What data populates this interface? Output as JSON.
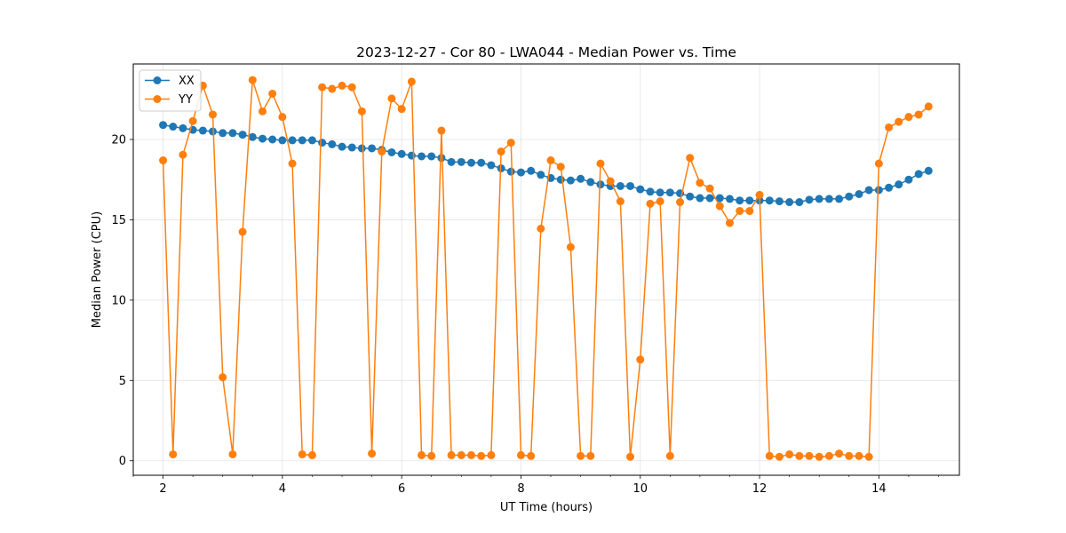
{
  "chart_data": {
    "type": "line",
    "title": "2023-12-27 - Cor 80 - LWA044 - Median Power vs. Time",
    "xlabel": "UT Time (hours)",
    "ylabel": "Median Power (CPU)",
    "xlim": [
      1.5,
      15.35
    ],
    "ylim": [
      -0.9,
      24.7
    ],
    "xticks": [
      2,
      4,
      6,
      8,
      10,
      12,
      14
    ],
    "xtick_labels": [
      "2",
      "4",
      "6",
      "8",
      "10",
      "12",
      "14"
    ],
    "xminor_step": 0.5,
    "yticks": [
      0,
      5,
      10,
      15,
      20
    ],
    "ytick_labels": [
      "0",
      "5",
      "10",
      "15",
      "20"
    ],
    "grid": true,
    "legend_position": "top-left",
    "x": [
      2.0,
      2.167,
      2.333,
      2.5,
      2.667,
      2.833,
      3.0,
      3.167,
      3.333,
      3.5,
      3.667,
      3.833,
      4.0,
      4.167,
      4.333,
      4.5,
      4.667,
      4.833,
      5.0,
      5.167,
      5.333,
      5.5,
      5.667,
      5.833,
      6.0,
      6.167,
      6.333,
      6.5,
      6.667,
      6.833,
      7.0,
      7.167,
      7.333,
      7.5,
      7.667,
      7.833,
      8.0,
      8.167,
      8.333,
      8.5,
      8.667,
      8.833,
      9.0,
      9.167,
      9.333,
      9.5,
      9.667,
      9.833,
      10.0,
      10.167,
      10.333,
      10.5,
      10.667,
      10.833,
      11.0,
      11.167,
      11.333,
      11.5,
      11.667,
      11.833,
      12.0,
      12.167,
      12.333,
      12.5,
      12.667,
      12.833,
      13.0,
      13.167,
      13.333,
      13.5,
      13.667,
      13.833,
      14.0,
      14.167,
      14.333,
      14.5,
      14.667,
      14.833
    ],
    "series": [
      {
        "name": "XX",
        "color": "#1f77b4",
        "values": [
          20.9,
          20.8,
          20.7,
          20.6,
          20.55,
          20.5,
          20.4,
          20.4,
          20.3,
          20.15,
          20.05,
          20.0,
          19.95,
          19.95,
          19.95,
          19.95,
          19.8,
          19.7,
          19.55,
          19.5,
          19.45,
          19.45,
          19.35,
          19.2,
          19.1,
          19.0,
          18.95,
          18.95,
          18.85,
          18.6,
          18.6,
          18.55,
          18.55,
          18.4,
          18.2,
          18.0,
          17.95,
          18.05,
          17.8,
          17.6,
          17.5,
          17.45,
          17.55,
          17.35,
          17.2,
          17.1,
          17.1,
          17.1,
          16.9,
          16.75,
          16.7,
          16.7,
          16.65,
          16.45,
          16.35,
          16.35,
          16.35,
          16.3,
          16.2,
          16.2,
          16.2,
          16.2,
          16.15,
          16.1,
          16.1,
          16.25,
          16.3,
          16.3,
          16.3,
          16.45,
          16.6,
          16.85,
          16.85,
          17.0,
          17.2,
          17.5,
          17.85,
          18.05
        ]
      },
      {
        "name": "YY",
        "color": "#ff7f0e",
        "values": [
          18.7,
          0.4,
          19.05,
          21.15,
          23.35,
          21.55,
          5.2,
          0.4,
          14.25,
          23.7,
          21.75,
          22.85,
          21.4,
          18.5,
          0.4,
          0.35,
          23.25,
          23.15,
          23.35,
          23.25,
          21.75,
          0.45,
          19.25,
          22.55,
          21.9,
          23.6,
          0.35,
          0.3,
          20.55,
          0.35,
          0.35,
          0.35,
          0.3,
          0.35,
          19.25,
          19.8,
          0.35,
          0.3,
          14.45,
          18.7,
          18.3,
          13.3,
          0.3,
          0.3,
          18.5,
          17.4,
          16.15,
          0.25,
          6.3,
          16.0,
          16.15,
          0.3,
          16.1,
          18.85,
          17.3,
          16.95,
          15.85,
          14.8,
          15.55,
          15.55,
          16.55,
          0.3,
          0.25,
          0.4,
          0.3,
          0.3,
          0.25,
          0.3,
          0.45,
          0.3,
          0.3,
          0.25,
          18.5,
          20.75,
          21.1,
          21.4,
          21.55,
          22.05
        ]
      }
    ]
  }
}
